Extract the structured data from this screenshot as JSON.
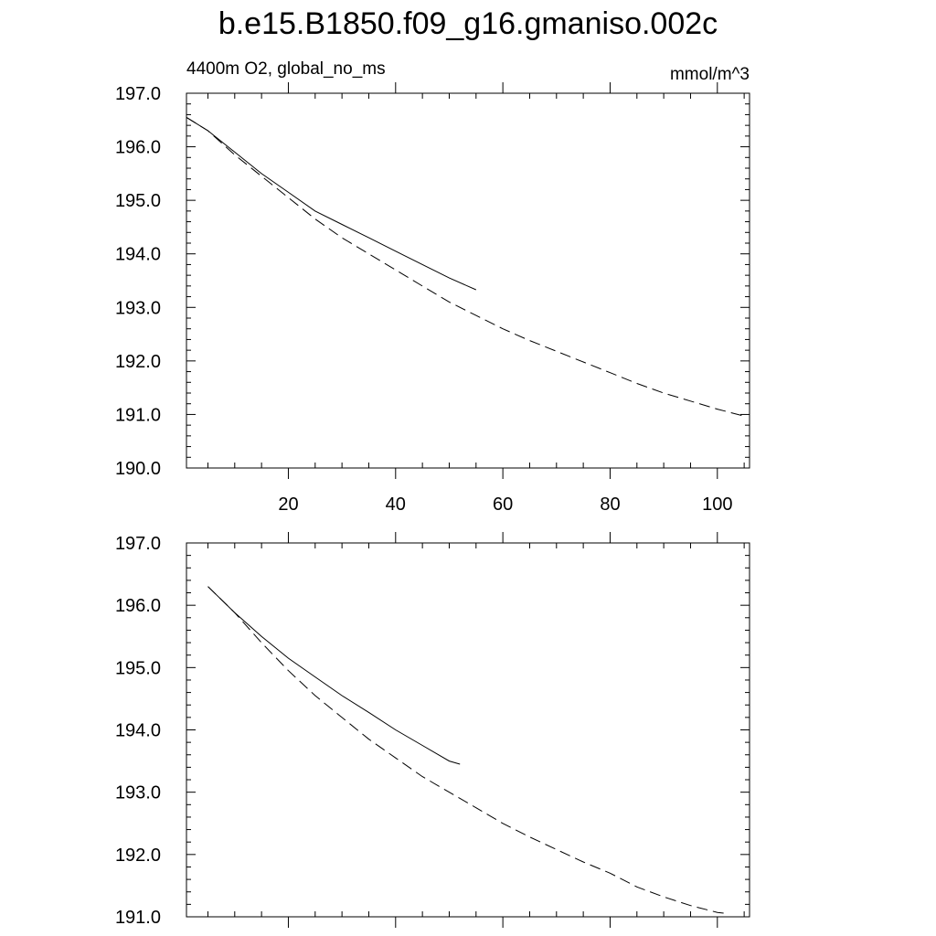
{
  "chart_data": [
    {
      "type": "line",
      "title": "b.e15.B1850.f09_g16.gmaniso.002c",
      "subtitle_left": "4400m O2, global_no_ms",
      "subtitle_right": "mmol/m^3",
      "xlim": [
        1,
        106
      ],
      "ylim": [
        190,
        197
      ],
      "xticks": [
        20,
        40,
        60,
        80,
        100
      ],
      "xtick_labels": [
        "20",
        "40",
        "60",
        "80",
        "100"
      ],
      "yticks": [
        190,
        191,
        192,
        193,
        194,
        195,
        196,
        197
      ],
      "ytick_labels": [
        "190.0",
        "191.0",
        "192.0",
        "193.0",
        "194.0",
        "195.0",
        "196.0",
        "197.0"
      ],
      "grid": false,
      "series": [
        {
          "style": "solid",
          "x": [
            1,
            5,
            10,
            15,
            20,
            25,
            30,
            35,
            40,
            45,
            50,
            55
          ],
          "y": [
            196.55,
            196.3,
            195.9,
            195.5,
            195.15,
            194.8,
            194.55,
            194.3,
            194.05,
            193.8,
            193.55,
            193.33
          ]
        },
        {
          "style": "dash",
          "x": [
            1,
            5,
            10,
            15,
            20,
            25,
            30,
            35,
            40,
            45,
            50,
            55,
            60,
            65,
            70,
            75,
            80,
            85,
            90,
            95,
            100,
            105
          ],
          "y": [
            196.55,
            196.3,
            195.85,
            195.45,
            195.05,
            194.65,
            194.3,
            194.0,
            193.7,
            193.4,
            193.1,
            192.85,
            192.6,
            192.38,
            192.18,
            191.98,
            191.78,
            191.58,
            191.4,
            191.25,
            191.1,
            190.97
          ]
        }
      ]
    },
    {
      "type": "line",
      "xlim": [
        1,
        106
      ],
      "ylim": [
        191,
        197
      ],
      "xticks": [
        20,
        40,
        60,
        80,
        100
      ],
      "yticks": [
        191,
        192,
        193,
        194,
        195,
        196,
        197
      ],
      "ytick_labels": [
        "191.0",
        "192.0",
        "193.0",
        "194.0",
        "195.0",
        "196.0",
        "197.0"
      ],
      "grid": false,
      "series": [
        {
          "style": "solid",
          "x": [
            5,
            10,
            15,
            20,
            25,
            30,
            35,
            40,
            45,
            50,
            52
          ],
          "y": [
            196.3,
            195.88,
            195.5,
            195.15,
            194.85,
            194.55,
            194.28,
            194.0,
            193.75,
            193.5,
            193.45
          ]
        },
        {
          "style": "dash",
          "x": [
            5,
            10,
            15,
            20,
            25,
            30,
            35,
            40,
            45,
            50,
            55,
            60,
            65,
            70,
            75,
            80,
            85,
            90,
            95,
            100,
            102
          ],
          "y": [
            196.3,
            195.88,
            195.4,
            194.95,
            194.55,
            194.2,
            193.85,
            193.55,
            193.25,
            193.0,
            192.75,
            192.5,
            192.28,
            192.08,
            191.88,
            191.7,
            191.48,
            191.32,
            191.18,
            191.07,
            191.05
          ]
        }
      ]
    }
  ]
}
